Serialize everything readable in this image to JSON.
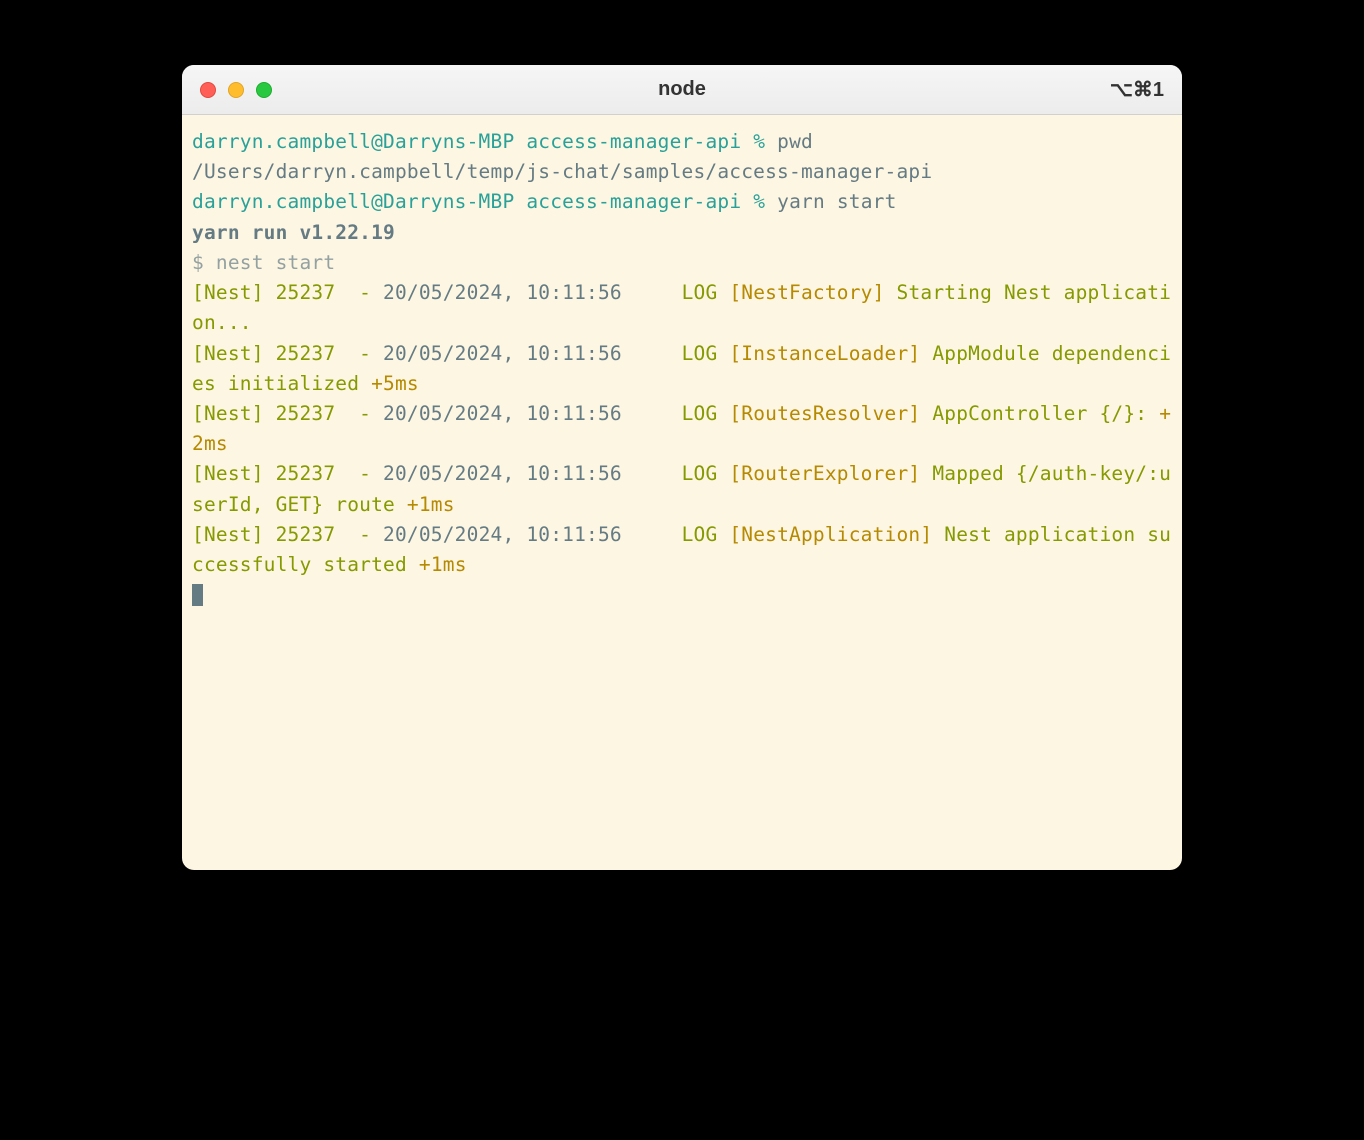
{
  "window": {
    "title": "node",
    "shortcut": "⌥⌘1"
  },
  "colors": {
    "background": "#fdf6e3",
    "teal": "#2aa198",
    "olive": "#859900",
    "gray": "#93a1a1",
    "orange": "#b58900",
    "fg": "#657b83",
    "titlebar_top": "#f6f6f6",
    "titlebar_bottom": "#ececec"
  },
  "prompt": {
    "user_host": "darryn.campbell@Darryns-MBP",
    "dir": "access-manager-api",
    "symbol": "%"
  },
  "lines": {
    "cmd1": "pwd",
    "pwd_output": "/Users/darryn.campbell/temp/js-chat/samples/access-manager-api",
    "cmd2": "yarn start",
    "yarn_run": "yarn run v1.22.19",
    "nest_prompt": "$ ",
    "nest_cmd": "nest start"
  },
  "logs": [
    {
      "prefix": "[Nest] 25237  - ",
      "ts": "20/05/2024, 10:11:56",
      "pad": "     ",
      "level": "LOG",
      "ctx": " [NestFactory] ",
      "msg": "Starting Nest application..."
    },
    {
      "prefix": "[Nest] 25237  - ",
      "ts": "20/05/2024, 10:11:56",
      "pad": "     ",
      "level": "LOG",
      "ctx": " [InstanceLoader] ",
      "msg": "AppModule dependencies initialized ",
      "timing": "+5ms"
    },
    {
      "prefix": "[Nest] 25237  - ",
      "ts": "20/05/2024, 10:11:56",
      "pad": "     ",
      "level": "LOG",
      "ctx": " [RoutesResolver] ",
      "msg": "AppController {/}: ",
      "timing": "+2ms"
    },
    {
      "prefix": "[Nest] 25237  - ",
      "ts": "20/05/2024, 10:11:56",
      "pad": "     ",
      "level": "LOG",
      "ctx": " [RouterExplorer] ",
      "msg": "Mapped {/auth-key/:userId, GET} route ",
      "timing": "+1ms"
    },
    {
      "prefix": "[Nest] 25237  - ",
      "ts": "20/05/2024, 10:11:56",
      "pad": "     ",
      "level": "LOG",
      "ctx": " [NestApplication] ",
      "msg": "Nest application successfully started ",
      "timing": "+1ms"
    }
  ]
}
